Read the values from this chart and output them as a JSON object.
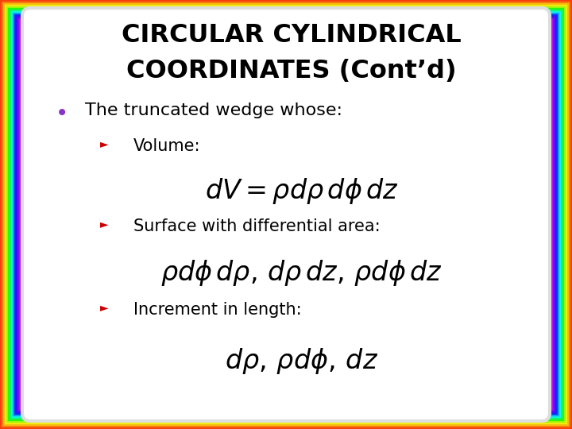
{
  "title_line1": "CIRCULAR CYLINDRICAL",
  "title_line2": "COORDINATES (Cont’d)",
  "bullet_text": "The truncated wedge whose:",
  "sub1_label": "Volume:",
  "sub1_formula": "$dV = \\rho d\\rho\\, d\\phi\\, dz$",
  "sub2_label": "Surface with differential area:",
  "sub2_formula": "$\\rho d\\phi\\, d\\rho,\\, d\\rho\\, dz,\\, \\rho d\\phi\\, dz$",
  "sub3_label": "Increment in length:",
  "sub3_formula": "$d\\rho,\\, \\rho d\\phi,\\, dz$",
  "bg_outer": "#a0a0a0",
  "bg_slide": "#ffffff",
  "title_color": "#000000",
  "bullet_color": "#000000",
  "sub_label_color": "#000000",
  "formula_color": "#000000",
  "bullet_dot_color": "#8833cc",
  "arrow_color": "#cc0000",
  "formula_fontsize": 24,
  "label_fontsize": 15,
  "title_fontsize": 23,
  "bullet_fontsize": 16
}
